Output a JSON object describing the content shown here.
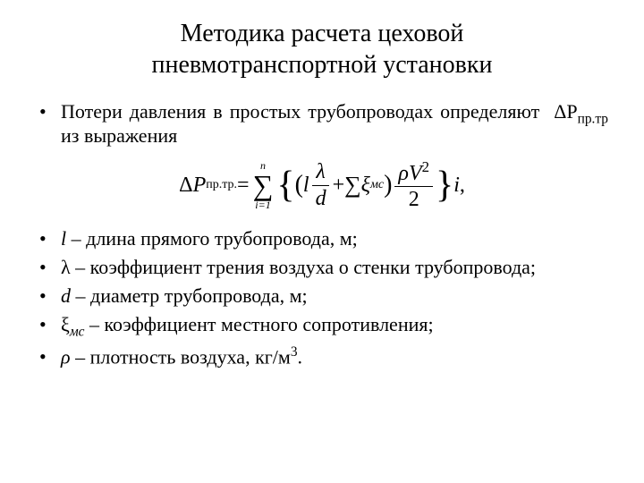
{
  "title_line1": "Методика расчета цеховой",
  "title_line2": "пневмотранспортной установки",
  "intro": {
    "bullet": "•",
    "text": "Потери давления в простых трубопроводах определяют из выражения",
    "symbol_prefix": "ΔP",
    "symbol_sub": "пр.тр"
  },
  "formula": {
    "lhs_delta": "Δ",
    "lhs_P": "P",
    "lhs_sub": "пр.тр.",
    "eq": " = ",
    "sum_top": "n",
    "sum_bottom": "i=1",
    "l": "l",
    "lambda": "λ",
    "d": "d",
    "plus": " + ",
    "inner_sigma": "∑",
    "xi": "ξ",
    "xi_sub": "мс",
    "rho": "ρ",
    "V": "V",
    "sq": "2",
    "two": "2",
    "i": "i",
    "comma": ","
  },
  "defs": [
    {
      "bullet": "•",
      "sym": "l",
      "text": " – длина прямого трубопровода, м;"
    },
    {
      "bullet": "•",
      "sym": "λ",
      "text": " – коэффициент трения воздуха о стенки трубопровода;"
    },
    {
      "bullet": "•",
      "sym": "d",
      "text": " – диаметр трубопровода, м;"
    },
    {
      "bullet": "•",
      "sym": "ξ",
      "sub": "мс",
      "text": " – коэффициент местного сопротивления;"
    },
    {
      "bullet": "•",
      "sym": "ρ",
      "text": " – плотность воздуха, кг/м",
      "sup": "3",
      "tail": "."
    }
  ]
}
